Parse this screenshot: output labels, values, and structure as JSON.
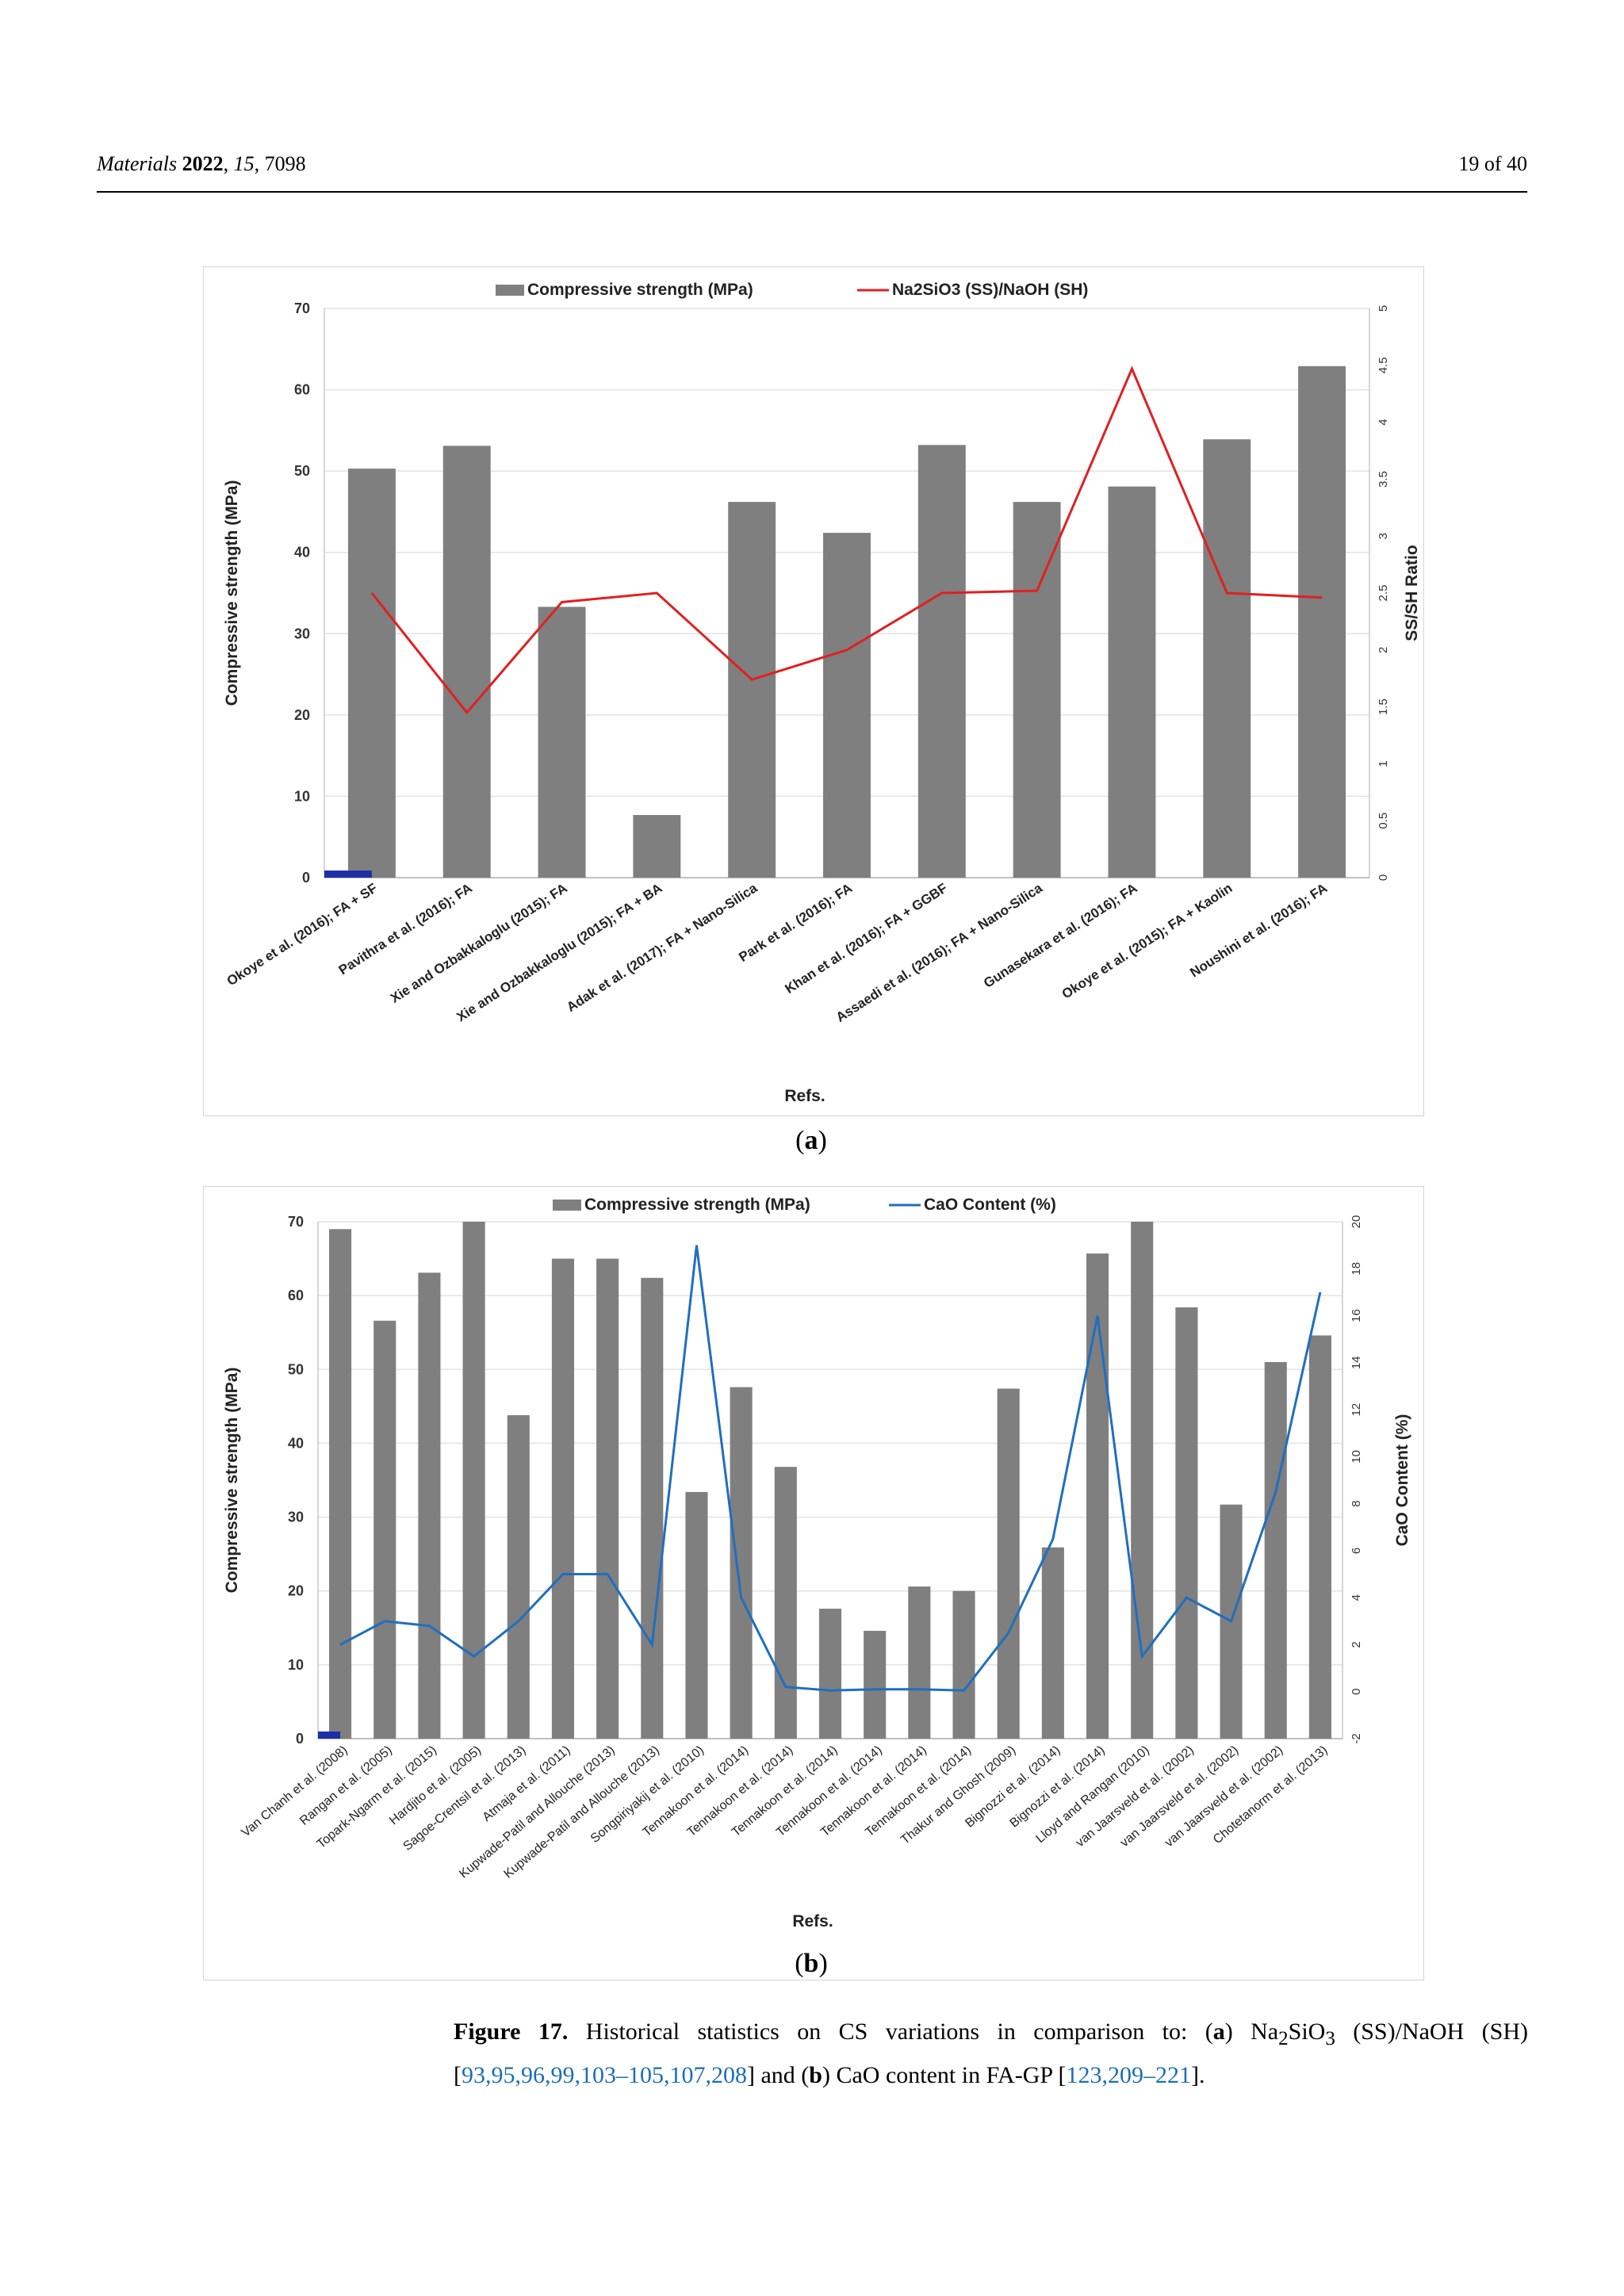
{
  "header": {
    "journal": "Materials",
    "year": "2022",
    "volume": "15",
    "article": "7098",
    "page": "19 of 40"
  },
  "figure": {
    "subcaption_a": "a",
    "subcaption_b": "b",
    "caption": {
      "label": "Figure 17.",
      "text1": "Historical statistics on CS variations in comparison to: (",
      "a": "a",
      "text2": ") Na",
      "sub2": "2",
      "text3": "SiO",
      "sub3": "3",
      "text4": " (SS)/NaOH (SH) [",
      "refs1": "93,95,96,99,103–105,107,208",
      "text5": "] and (",
      "b": "b",
      "text6": ") CaO content in FA-GP [",
      "refs2": "123,209–221",
      "text7": "]."
    }
  },
  "chart_data": [
    {
      "type": "bar",
      "title": "",
      "legend": [
        "Compressive strength (MPa)",
        "Na2SiO3 (SS)/NaOH (SH)"
      ],
      "legend_position": "top-center",
      "xlabel": "Refs.",
      "ylabel": "Compressive strength (MPa)",
      "y2label": "SS/SH Ratio",
      "ylim": [
        0,
        70
      ],
      "y2lim": [
        0,
        5
      ],
      "yticks": [
        "0",
        "10",
        "20",
        "30",
        "40",
        "50",
        "60",
        "70"
      ],
      "y2ticks": [
        "0",
        "0.5",
        "1",
        "1.5",
        "2",
        "2.5",
        "3",
        "3.5",
        "4",
        "4.5",
        "5"
      ],
      "categories": [
        "Okoye et al. (2016); FA + SF",
        "Pavithra et al. (2016); FA",
        "Xie and Ozbakkaloglu (2015); FA",
        "Xie and Ozbakkaloglu (2015); FA + BA",
        "Adak et al. (2017); FA + Nano-Silica",
        "Park et al. (2016); FA",
        "Khan et al. (2016); FA + GGBF",
        "Assaedi et al. (2016); FA + Nano-Silica",
        "Gunasekara et al. (2016); FA",
        "Okoye et al. (2015); FA + Kaolin",
        "Noushini et al. (2016); FA"
      ],
      "series": [
        {
          "name": "Compressive strength (MPa)",
          "axis": "left",
          "kind": "bar",
          "color": "#7f7f7f",
          "values": [
            50.3,
            53.1,
            33.3,
            7.7,
            46.2,
            42.4,
            53.2,
            46.2,
            48.1,
            53.9,
            62.9
          ]
        },
        {
          "name": "Na2SiO3 (SS)/NaOH (SH)",
          "axis": "right",
          "kind": "line",
          "color": "#e02020",
          "values": [
            2.5,
            1.45,
            2.42,
            2.5,
            1.74,
            2.0,
            2.5,
            2.52,
            4.47,
            2.5,
            2.46
          ]
        }
      ]
    },
    {
      "type": "bar",
      "title": "",
      "legend": [
        "Compressive strength (MPa)",
        "CaO Content (%)"
      ],
      "legend_position": "top-center",
      "xlabel": "Refs.",
      "ylabel": "Compressive strength (MPa)",
      "y2label": "CaO Content (%)",
      "ylim": [
        0,
        70
      ],
      "y2lim": [
        -2,
        20
      ],
      "yticks": [
        "0",
        "10",
        "20",
        "30",
        "40",
        "50",
        "60",
        "70"
      ],
      "y2ticks": [
        "-2",
        "0",
        "2",
        "4",
        "6",
        "8",
        "10",
        "12",
        "14",
        "16",
        "18",
        "20"
      ],
      "categories": [
        "Van Chanh et al. (2008)",
        "Rangan et al. (2005)",
        "Topark-Ngarm et al. (2015)",
        "Hardjito et al. (2005)",
        "Sagoe-Crentsil et al. (2013)",
        "Atmaja et al. (2011)",
        "Kupwade-Patil and Allouche (2013)",
        "Kupwade-Patil and Allouche (2013)",
        "Songpiriyakij et al. (2010)",
        "Tennakoon et al. (2014)",
        "Tennakoon et al. (2014)",
        "Tennakoon et al. (2014)",
        "Tennakoon et al. (2014)",
        "Tennakoon et al. (2014)",
        "Tennakoon et al. (2014)",
        "Thakur and Ghosh (2009)",
        "Bignozzi et al. (2014)",
        "Bignozzi et al. (2014)",
        "Lloyd and Rangan (2010)",
        "van Jaarsveld et al. (2002)",
        "van Jaarsveld et al. (2002)",
        "van Jaarsveld et al. (2002)",
        "Chotetanorm et al. (2013)"
      ],
      "series": [
        {
          "name": "Compressive strength (MPa)",
          "axis": "left",
          "kind": "bar",
          "color": "#7f7f7f",
          "values": [
            69.0,
            56.6,
            63.1,
            70.0,
            43.8,
            65.0,
            65.0,
            62.4,
            33.4,
            47.6,
            36.8,
            17.6,
            14.6,
            20.6,
            20.0,
            47.4,
            25.9,
            65.7,
            70.0,
            58.4,
            31.7,
            51.0,
            54.6
          ]
        },
        {
          "name": "CaO Content (%)",
          "axis": "right",
          "kind": "line",
          "color": "#1f6fbf",
          "values": [
            2.0,
            3.0,
            2.8,
            1.5,
            3.0,
            5.0,
            5.0,
            2.0,
            19.0,
            4.0,
            0.2,
            0.05,
            0.1,
            0.1,
            0.05,
            2.5,
            6.5,
            16.0,
            1.5,
            4.0,
            3.0,
            8.5,
            17.0
          ]
        }
      ]
    }
  ]
}
